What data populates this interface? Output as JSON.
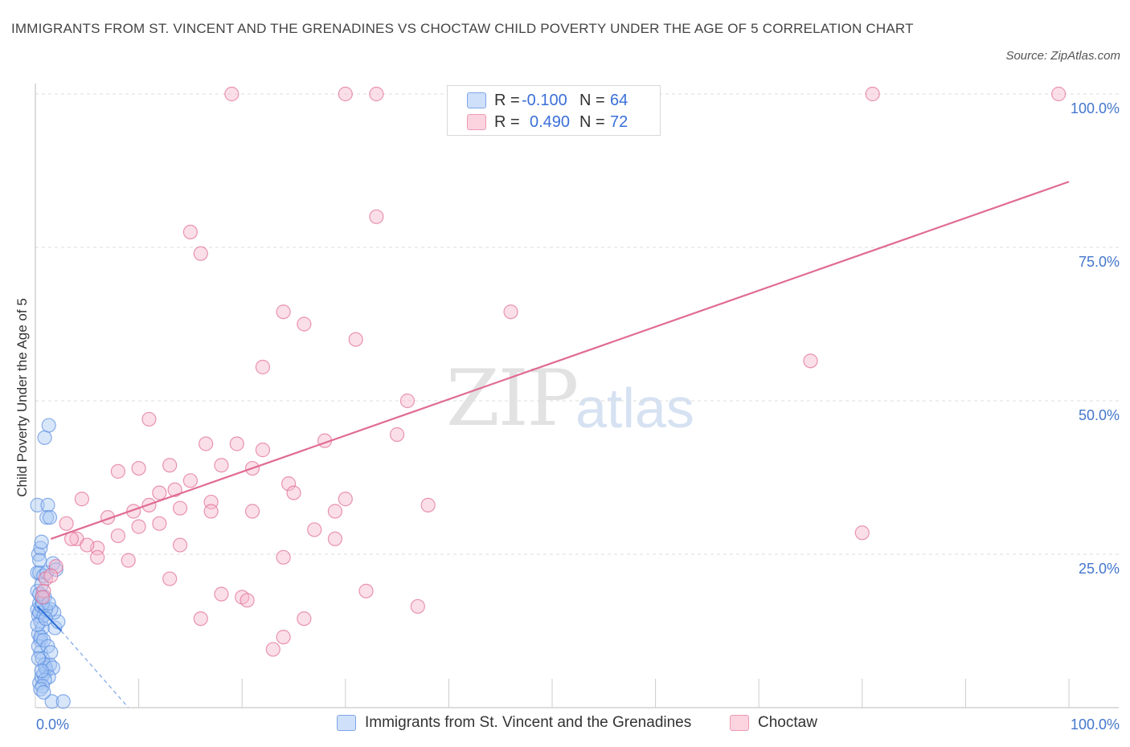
{
  "title": "IMMIGRANTS FROM ST. VINCENT AND THE GRENADINES VS CHOCTAW CHILD POVERTY UNDER THE AGE OF 5 CORRELATION CHART",
  "source": "Source: ZipAtlas.com",
  "watermark": {
    "zip": "ZIP",
    "atlas": "atlas"
  },
  "legend": {
    "rows": [
      {
        "r_label": "R =",
        "r_value": "-0.100",
        "n_label": "N =",
        "n_value": "64",
        "color": "#a9c8f5"
      },
      {
        "r_label": "R =",
        "r_value": "0.490",
        "n_label": "N =",
        "n_value": "72",
        "color": "#f7b9cc"
      }
    ]
  },
  "bottom_legend": [
    {
      "label": "Immigrants from St. Vincent and the Grenadines",
      "color": "#a9c8f5"
    },
    {
      "label": "Choctaw",
      "color": "#f7b9cc"
    }
  ],
  "chart_data": {
    "type": "scatter",
    "title": "IMMIGRANTS FROM ST. VINCENT AND THE GRENADINES VS CHOCTAW CHILD POVERTY UNDER THE AGE OF 5 CORRELATION CHART",
    "xlabel": "",
    "ylabel": "Child Poverty Under the Age of 5",
    "xlim": [
      0,
      100
    ],
    "ylim": [
      0,
      100
    ],
    "x_tick_labels": [
      "0.0%",
      "100.0%"
    ],
    "y_tick_labels": [
      "25.0%",
      "50.0%",
      "75.0%",
      "100.0%"
    ],
    "y_ticks": [
      25,
      50,
      75,
      100
    ],
    "grid": true,
    "legend_position": "top-center",
    "series": [
      {
        "name": "Immigrants from St. Vincent and the Grenadines",
        "color": "#5b8fe0",
        "fill": "#a9c8f5",
        "R": -0.1,
        "N": 64,
        "trend": {
          "x": [
            0.2,
            2.5
          ],
          "y": [
            16.5,
            12.5
          ],
          "dashed_to": [
            9.0,
            0.0
          ]
        },
        "points": [
          [
            0.2,
            16
          ],
          [
            0.3,
            15
          ],
          [
            0.5,
            14
          ],
          [
            0.4,
            17
          ],
          [
            0.6,
            18
          ],
          [
            0.2,
            19
          ],
          [
            0.3,
            12
          ],
          [
            0.5,
            11
          ],
          [
            0.7,
            13
          ],
          [
            0.4,
            15.5
          ],
          [
            0.6,
            16.5
          ],
          [
            0.8,
            15
          ],
          [
            0.2,
            22
          ],
          [
            0.4,
            22
          ],
          [
            0.3,
            25
          ],
          [
            0.5,
            26
          ],
          [
            0.6,
            27
          ],
          [
            0.2,
            33
          ],
          [
            1.2,
            33
          ],
          [
            1.1,
            31
          ],
          [
            1.4,
            31
          ],
          [
            0.9,
            44
          ],
          [
            1.3,
            46
          ],
          [
            0.5,
            9
          ],
          [
            0.7,
            8
          ],
          [
            0.9,
            7
          ],
          [
            1.1,
            6
          ],
          [
            0.4,
            4
          ],
          [
            0.6,
            5
          ],
          [
            0.8,
            5.5
          ],
          [
            1.0,
            6.5
          ],
          [
            1.4,
            7
          ],
          [
            1.7,
            6.5
          ],
          [
            1.3,
            5
          ],
          [
            0.9,
            4.5
          ],
          [
            0.7,
            3.5
          ],
          [
            0.5,
            3
          ],
          [
            1.6,
            1
          ],
          [
            2.7,
            1
          ],
          [
            0.3,
            10
          ],
          [
            0.5,
            11.5
          ],
          [
            0.8,
            11
          ],
          [
            1.2,
            10
          ],
          [
            1.5,
            9
          ],
          [
            1.9,
            13
          ],
          [
            2.2,
            14
          ],
          [
            1.8,
            15.5
          ],
          [
            1.5,
            16
          ],
          [
            1.0,
            16
          ],
          [
            0.7,
            17
          ],
          [
            0.4,
            18.5
          ],
          [
            0.6,
            20
          ],
          [
            0.8,
            21.5
          ],
          [
            1.1,
            22
          ],
          [
            1.7,
            23.5
          ],
          [
            2.0,
            22.5
          ],
          [
            0.9,
            18
          ],
          [
            1.3,
            17
          ],
          [
            0.2,
            13.5
          ],
          [
            0.3,
            8
          ],
          [
            0.6,
            6
          ],
          [
            0.8,
            2.5
          ],
          [
            1.0,
            14.5
          ],
          [
            0.4,
            24
          ]
        ]
      },
      {
        "name": "Choctaw",
        "color": "#e06b93",
        "fill": "#f7b9cc",
        "R": 0.49,
        "N": 72,
        "trend": {
          "x": [
            1.5,
            100
          ],
          "y": [
            27.5,
            85.7
          ]
        },
        "points": [
          [
            19,
            100
          ],
          [
            30,
            100
          ],
          [
            33,
            100
          ],
          [
            81,
            100
          ],
          [
            99,
            100
          ],
          [
            33,
            80
          ],
          [
            15,
            77.5
          ],
          [
            16,
            74
          ],
          [
            24,
            64.5
          ],
          [
            26,
            62.5
          ],
          [
            31,
            60
          ],
          [
            46,
            64.5
          ],
          [
            22,
            55.5
          ],
          [
            36,
            50
          ],
          [
            75,
            56.5
          ],
          [
            11,
            47
          ],
          [
            16.5,
            43
          ],
          [
            19.5,
            43
          ],
          [
            22,
            42
          ],
          [
            28,
            43.5
          ],
          [
            35,
            44.5
          ],
          [
            8,
            38.5
          ],
          [
            10,
            39
          ],
          [
            13,
            39.5
          ],
          [
            18,
            39.5
          ],
          [
            21,
            39
          ],
          [
            12,
            35
          ],
          [
            15,
            37
          ],
          [
            24.5,
            36.5
          ],
          [
            25,
            35
          ],
          [
            4.5,
            34
          ],
          [
            7,
            31
          ],
          [
            9.5,
            32
          ],
          [
            13.5,
            35.5
          ],
          [
            17,
            33.5
          ],
          [
            11,
            33
          ],
          [
            14,
            32.5
          ],
          [
            17,
            32
          ],
          [
            29,
            32
          ],
          [
            30,
            34
          ],
          [
            38,
            33
          ],
          [
            3,
            30
          ],
          [
            6,
            26
          ],
          [
            8,
            28
          ],
          [
            10,
            29.5
          ],
          [
            4,
            27.5
          ],
          [
            5,
            26.5
          ],
          [
            9,
            24
          ],
          [
            14,
            26.5
          ],
          [
            24,
            24.5
          ],
          [
            27,
            29
          ],
          [
            29,
            27.5
          ],
          [
            80,
            28.5
          ],
          [
            2,
            23
          ],
          [
            1,
            21
          ],
          [
            1.5,
            21.5
          ],
          [
            0.8,
            19
          ],
          [
            0.7,
            18
          ],
          [
            13,
            21
          ],
          [
            18,
            18.5
          ],
          [
            20,
            18
          ],
          [
            20.5,
            17.5
          ],
          [
            32,
            19
          ],
          [
            37,
            16.5
          ],
          [
            16,
            14.5
          ],
          [
            26,
            14.5
          ],
          [
            24,
            11.5
          ],
          [
            23,
            9.5
          ],
          [
            6,
            24.5
          ],
          [
            12,
            30
          ],
          [
            21,
            32
          ],
          [
            3.5,
            27.5
          ]
        ]
      }
    ]
  }
}
